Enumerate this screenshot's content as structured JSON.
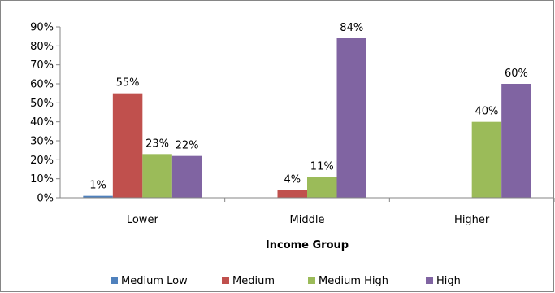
{
  "chart_data": {
    "type": "bar",
    "title": "",
    "xlabel": "Income Group",
    "ylabel": "",
    "categories": [
      "Lower",
      "Middle",
      "Higher"
    ],
    "ylim": [
      0,
      90
    ],
    "yticks": [
      0,
      10,
      20,
      30,
      40,
      50,
      60,
      70,
      80,
      90
    ],
    "ytick_labels": [
      "0%",
      "10%",
      "20%",
      "30%",
      "40%",
      "50%",
      "60%",
      "70%",
      "80%",
      "90%"
    ],
    "grid": false,
    "legend_position": "bottom",
    "series": [
      {
        "name": "Medium Low",
        "color": "#4F81BD",
        "values": [
          1,
          null,
          null
        ],
        "labels": [
          "1%",
          "",
          ""
        ]
      },
      {
        "name": "Medium",
        "color": "#C0504D",
        "values": [
          55,
          4,
          null
        ],
        "labels": [
          "55%",
          "4%",
          ""
        ]
      },
      {
        "name": "Medium High",
        "color": "#9BBB59",
        "values": [
          23,
          11,
          40
        ],
        "labels": [
          "23%",
          "11%",
          "40%"
        ]
      },
      {
        "name": "High",
        "color": "#8064A2",
        "values": [
          22,
          84,
          60
        ],
        "labels": [
          "22%",
          "84%",
          "60%"
        ]
      }
    ]
  }
}
